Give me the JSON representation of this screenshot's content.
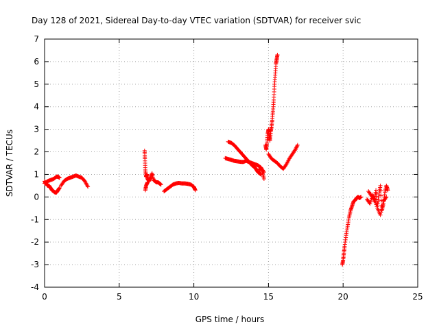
{
  "chart_data": {
    "type": "scatter",
    "title": "Day 128 of 2021, Sidereal Day-to-day VTEC variation (SDTVAR) for receiver svic",
    "xlabel": "GPS time / hours",
    "ylabel": "SDTVAR / TECUs",
    "xlim": [
      0,
      25
    ],
    "ylim": [
      -4,
      7
    ],
    "xticks": [
      0,
      5,
      10,
      15,
      20,
      25
    ],
    "yticks": [
      -4,
      -3,
      -2,
      -1,
      0,
      1,
      2,
      3,
      4,
      5,
      6,
      7
    ],
    "grid": true,
    "marker": "+",
    "color": "#ff0000",
    "segments": [
      {
        "name": "arc-1a",
        "x": [
          0.0,
          0.1,
          0.2,
          0.3,
          0.4,
          0.5,
          0.6,
          0.7,
          0.8,
          0.9,
          1.0
        ],
        "y": [
          0.7,
          0.6,
          0.5,
          0.5,
          0.4,
          0.3,
          0.25,
          0.2,
          0.2,
          0.3,
          0.4
        ]
      },
      {
        "name": "arc-1b",
        "x": [
          0.0,
          0.2,
          0.4,
          0.6,
          0.8,
          0.9,
          1.0
        ],
        "y": [
          0.6,
          0.7,
          0.75,
          0.8,
          0.9,
          0.9,
          0.85
        ]
      },
      {
        "name": "arc-2",
        "x": [
          1.1,
          1.3,
          1.5,
          1.7,
          1.9,
          2.1,
          2.3,
          2.5,
          2.7,
          2.9
        ],
        "y": [
          0.5,
          0.7,
          0.8,
          0.85,
          0.9,
          0.95,
          0.9,
          0.85,
          0.7,
          0.45
        ]
      },
      {
        "name": "arc-3",
        "x": [
          6.7,
          6.72,
          6.75,
          6.8,
          6.85,
          6.9,
          7.0,
          7.1,
          7.2,
          7.3,
          7.4,
          7.5,
          7.6,
          7.7,
          7.8
        ],
        "y": [
          2.05,
          1.7,
          1.2,
          0.9,
          1.0,
          0.8,
          0.7,
          0.85,
          1.05,
          0.75,
          0.7,
          0.65,
          0.65,
          0.6,
          0.55
        ]
      },
      {
        "name": "arc-3b",
        "x": [
          6.75,
          6.8,
          6.9
        ],
        "y": [
          0.3,
          0.5,
          0.65
        ]
      },
      {
        "name": "arc-4",
        "x": [
          8.0,
          8.2,
          8.4,
          8.6,
          8.8,
          9.0,
          9.2,
          9.4,
          9.6,
          9.8,
          10.0,
          10.1
        ],
        "y": [
          0.25,
          0.35,
          0.45,
          0.55,
          0.6,
          0.62,
          0.6,
          0.6,
          0.58,
          0.55,
          0.45,
          0.3
        ]
      },
      {
        "name": "arc-5a",
        "x": [
          12.1,
          12.3,
          12.5,
          12.7,
          12.9,
          13.1,
          13.3,
          13.5,
          13.7,
          13.9,
          14.1,
          14.3,
          14.5,
          14.7
        ],
        "y": [
          1.72,
          1.68,
          1.65,
          1.6,
          1.58,
          1.56,
          1.55,
          1.6,
          1.55,
          1.5,
          1.45,
          1.4,
          1.3,
          1.1
        ]
      },
      {
        "name": "arc-5b",
        "x": [
          12.3,
          12.5,
          12.7,
          12.9,
          13.1,
          13.3,
          13.5,
          13.7,
          13.9,
          14.1,
          14.2,
          14.3,
          14.4,
          14.5
        ],
        "y": [
          2.45,
          2.4,
          2.3,
          2.15,
          2.0,
          1.85,
          1.7,
          1.55,
          1.4,
          1.3,
          1.2,
          1.1,
          1.05,
          1.0
        ]
      },
      {
        "name": "arc-5c",
        "x": [
          14.4,
          14.5,
          14.6,
          14.7
        ],
        "y": [
          1.2,
          1.3,
          1.1,
          0.8
        ]
      },
      {
        "name": "arc-6",
        "x": [
          14.8,
          14.85,
          14.9,
          14.95,
          15.0,
          15.05,
          15.1,
          15.15,
          15.2,
          15.25,
          15.3,
          15.35,
          15.4,
          15.45,
          15.5,
          15.55,
          15.6
        ],
        "y": [
          2.3,
          2.1,
          2.4,
          2.8,
          3.0,
          2.7,
          2.5,
          2.9,
          3.1,
          3.4,
          3.8,
          4.3,
          4.9,
          5.4,
          5.9,
          6.1,
          6.3
        ]
      },
      {
        "name": "arc-7",
        "x": [
          15.0,
          15.2,
          15.4,
          15.6,
          15.8,
          16.0,
          16.2,
          16.4,
          16.6,
          16.8,
          16.95
        ],
        "y": [
          1.9,
          1.7,
          1.6,
          1.5,
          1.35,
          1.25,
          1.45,
          1.7,
          1.9,
          2.1,
          2.3
        ]
      },
      {
        "name": "arc-8",
        "x": [
          19.95,
          20.0,
          20.05,
          20.1,
          20.2,
          20.3,
          20.4,
          20.5,
          20.6,
          20.7,
          20.8,
          20.9,
          21.0,
          21.1,
          21.2
        ],
        "y": [
          -3.0,
          -2.8,
          -2.5,
          -2.2,
          -1.7,
          -1.3,
          -0.9,
          -0.6,
          -0.4,
          -0.2,
          -0.15,
          -0.05,
          0.0,
          -0.05,
          0.0
        ]
      },
      {
        "name": "arc-9",
        "x": [
          21.6,
          21.8,
          22.0,
          22.1,
          22.2,
          22.3,
          22.4,
          22.5,
          22.6,
          22.7,
          22.8,
          22.9,
          23.0
        ],
        "y": [
          -0.1,
          -0.3,
          0.1,
          -0.2,
          0.3,
          -0.4,
          0.1,
          0.5,
          -0.6,
          -0.3,
          0.2,
          0.5,
          0.3
        ]
      },
      {
        "name": "arc-9b",
        "x": [
          21.7,
          21.9,
          22.1,
          22.3,
          22.5,
          22.7,
          22.9
        ],
        "y": [
          0.25,
          0.05,
          -0.1,
          -0.5,
          -0.8,
          -0.2,
          0.0
        ]
      }
    ]
  }
}
